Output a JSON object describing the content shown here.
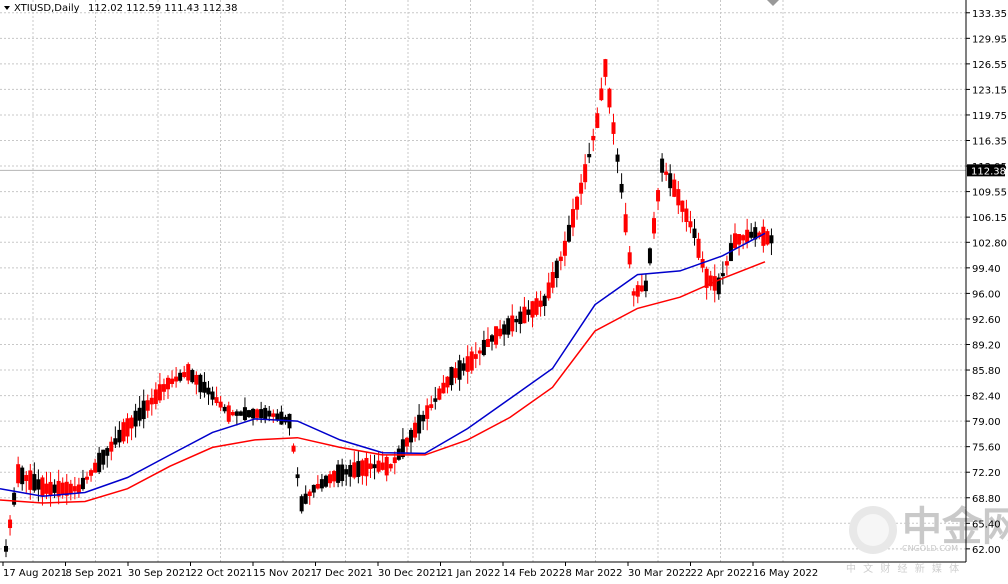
{
  "header": {
    "symbol": "XTIUSD,Daily",
    "ohlc": "112.02 112.59 111.43 112.38"
  },
  "watermark": {
    "brand_cn": "中金网",
    "brand_en": "CNGOLD.COM",
    "tagline": "中 文 财 经 新 媒 体"
  },
  "colors": {
    "background": "#ffffff",
    "grid": "#c8c8c8",
    "up_candle": "#ff0000",
    "down_candle": "#000000",
    "ma_fast": "#0000cc",
    "ma_slow": "#ff0000",
    "price_box": "#000000",
    "price_line": "#b4b4b4"
  },
  "chart_data": {
    "type": "candlestick",
    "symbol": "XTIUSD",
    "timeframe": "Daily",
    "last_price": 112.38,
    "last_price_label": "112.38",
    "ylim": [
      60.25,
      135.05
    ],
    "y_ticks": [
      "133.35",
      "129.95",
      "126.55",
      "123.15",
      "119.75",
      "116.35",
      "112.95",
      "109.55",
      "106.15",
      "102.80",
      "99.40",
      "96.00",
      "92.60",
      "89.20",
      "85.80",
      "82.40",
      "79.00",
      "75.60",
      "72.20",
      "68.80",
      "65.40",
      "62.00"
    ],
    "x_ticks": [
      "17 Aug 2021",
      "8 Sep 2021",
      "30 Sep 2021",
      "22 Oct 2021",
      "15 Nov 2021",
      "7 Dec 2021",
      "30 Dec 2021",
      "21 Jan 2022",
      "14 Feb 2022",
      "8 Mar 2022",
      "30 Mar 2022",
      "22 Apr 2022",
      "16 May 2022"
    ],
    "ma_fast": [
      70.0,
      69.0,
      69.5,
      71.5,
      74.5,
      77.5,
      79.3,
      79.0,
      76.5,
      74.8,
      74.7,
      78.0,
      82.0,
      86.0,
      94.5,
      98.5,
      99.0,
      101.0,
      104.0
    ],
    "ma_slow": [
      68.5,
      68.1,
      68.3,
      70.0,
      73.0,
      75.5,
      76.5,
      76.8,
      75.5,
      74.5,
      74.5,
      76.5,
      79.5,
      83.5,
      91.0,
      94.0,
      95.5,
      98.0,
      100.2
    ],
    "legend": "none",
    "grid": "dotted"
  }
}
